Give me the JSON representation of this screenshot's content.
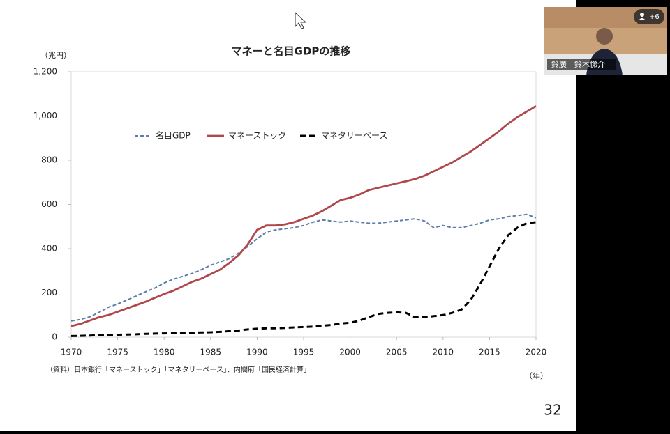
{
  "chart_data": {
    "type": "line",
    "title": "マネーと名目GDPの推移",
    "y_label": "（兆円）",
    "x_label": "（年）",
    "source": "（資料）日本銀行「マネーストック」「マネタリーベース」、内閣府「国民経済計算」",
    "x": [
      1970,
      1971,
      1972,
      1973,
      1974,
      1975,
      1976,
      1977,
      1978,
      1979,
      1980,
      1981,
      1982,
      1983,
      1984,
      1985,
      1986,
      1987,
      1988,
      1989,
      1990,
      1991,
      1992,
      1993,
      1994,
      1995,
      1996,
      1997,
      1998,
      1999,
      2000,
      2001,
      2002,
      2003,
      2004,
      2005,
      2006,
      2007,
      2008,
      2009,
      2010,
      2011,
      2012,
      2013,
      2014,
      2015,
      2016,
      2017,
      2018,
      2019,
      2020
    ],
    "series": [
      {
        "name": "名目GDP",
        "color": "#5b7fa6",
        "line_style": "dashed",
        "values": [
          73,
          80,
          92,
          112,
          135,
          150,
          168,
          186,
          205,
          222,
          245,
          262,
          275,
          288,
          305,
          325,
          340,
          355,
          380,
          410,
          445,
          475,
          485,
          490,
          495,
          505,
          520,
          530,
          525,
          520,
          525,
          520,
          515,
          515,
          520,
          525,
          530,
          535,
          525,
          495,
          505,
          495,
          495,
          505,
          515,
          530,
          535,
          545,
          550,
          555,
          540
        ]
      },
      {
        "name": "マネーストック",
        "color": "#b0474a",
        "line_style": "solid",
        "values": [
          50,
          60,
          75,
          90,
          100,
          115,
          130,
          145,
          160,
          178,
          195,
          210,
          230,
          250,
          265,
          285,
          305,
          335,
          370,
          420,
          485,
          505,
          505,
          510,
          520,
          535,
          550,
          570,
          595,
          620,
          630,
          645,
          665,
          675,
          685,
          695,
          705,
          715,
          730,
          750,
          770,
          790,
          815,
          840,
          870,
          900,
          930,
          965,
          995,
          1020,
          1045
        ]
      },
      {
        "name": "マネタリーベース",
        "color": "#000000",
        "line_style": "dashed-bold",
        "values": [
          5,
          6,
          7,
          9,
          10,
          11,
          12,
          13,
          15,
          16,
          17,
          18,
          19,
          20,
          21,
          22,
          24,
          27,
          30,
          35,
          38,
          40,
          40,
          42,
          44,
          46,
          48,
          52,
          55,
          62,
          65,
          75,
          90,
          105,
          110,
          112,
          110,
          90,
          90,
          95,
          100,
          110,
          125,
          170,
          240,
          320,
          400,
          460,
          495,
          515,
          520
        ]
      }
    ],
    "xlim": [
      1970,
      2020
    ],
    "xticks": [
      1970,
      1975,
      1980,
      1985,
      1990,
      1995,
      2000,
      2005,
      2010,
      2015,
      2020
    ],
    "ylim": [
      0,
      1200
    ],
    "yticks": [
      0,
      200,
      400,
      600,
      800,
      {
        "value": 1000,
        "label": "1,000"
      },
      {
        "value": 1200,
        "label": "1,200"
      }
    ],
    "grid": false,
    "legend": "top-left"
  },
  "slide": {
    "page_number": "32"
  },
  "video": {
    "participant_name": "鈴廣　鈴木悌介",
    "participants_button": "+6"
  }
}
